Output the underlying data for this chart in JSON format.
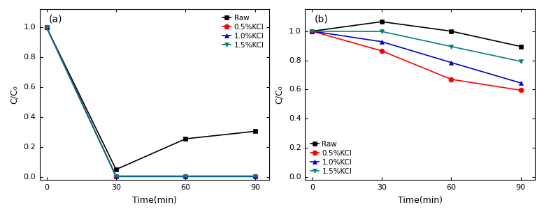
{
  "time": [
    0,
    30,
    60,
    90
  ],
  "panel_a": {
    "label": "(a)",
    "ylabel": "C/C₀",
    "xlabel": "Time(min)",
    "ylim": [
      -0.02,
      1.12
    ],
    "yticks": [
      0.0,
      0.2,
      0.4,
      0.6,
      0.8,
      1.0
    ],
    "xlim": [
      -3,
      96
    ],
    "legend_loc": "upper right",
    "series": [
      {
        "label": "Raw",
        "color": "#000000",
        "marker": "s",
        "markersize": 5,
        "lw": 1.2,
        "data": [
          1.0,
          0.05,
          0.255,
          0.305
        ]
      },
      {
        "label": "0.5%KCl",
        "color": "#ff0000",
        "marker": "o",
        "markersize": 5,
        "lw": 1.2,
        "data": [
          1.0,
          0.006,
          0.006,
          0.006
        ]
      },
      {
        "label": "1.0%KCl",
        "color": "#0000cc",
        "marker": "^",
        "markersize": 5,
        "lw": 1.2,
        "data": [
          1.0,
          0.004,
          0.004,
          0.004
        ]
      },
      {
        "label": "1.5%KCl",
        "color": "#008080",
        "marker": "v",
        "markersize": 5,
        "lw": 1.2,
        "data": [
          1.0,
          0.002,
          0.002,
          0.002
        ]
      }
    ]
  },
  "panel_b": {
    "label": "(b)",
    "ylabel": "C/C₀",
    "xlabel": "Time(min)",
    "ylim": [
      -0.02,
      1.15
    ],
    "yticks": [
      0.0,
      0.2,
      0.4,
      0.6,
      0.8,
      1.0
    ],
    "xlim": [
      -3,
      96
    ],
    "legend_loc": "lower left",
    "series": [
      {
        "label": "Raw",
        "color": "#000000",
        "marker": "s",
        "markersize": 5,
        "lw": 1.2,
        "data": [
          1.0,
          1.065,
          1.0,
          0.895
        ]
      },
      {
        "label": "0.5%KCl",
        "color": "#ff0000",
        "marker": "o",
        "markersize": 5,
        "lw": 1.2,
        "data": [
          1.0,
          0.865,
          0.67,
          0.595
        ]
      },
      {
        "label": "1.0%KCl",
        "color": "#0000cc",
        "marker": "^",
        "markersize": 5,
        "lw": 1.2,
        "data": [
          1.0,
          0.928,
          0.785,
          0.645
        ]
      },
      {
        "label": "1.5%KCl",
        "color": "#008080",
        "marker": "v",
        "markersize": 5,
        "lw": 1.2,
        "data": [
          1.0,
          0.998,
          0.895,
          0.793
        ]
      }
    ]
  }
}
